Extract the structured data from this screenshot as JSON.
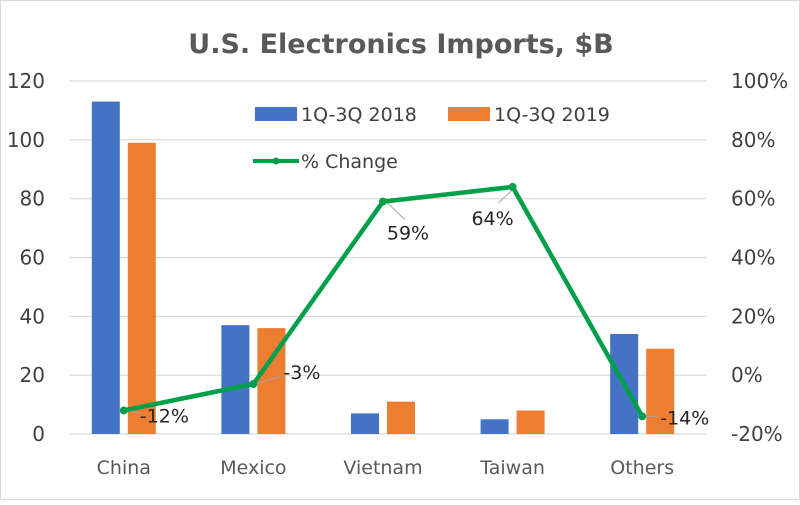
{
  "chart_data": {
    "type": "bar",
    "title": "U.S. Electronics Imports, $B",
    "categories": [
      "China",
      "Mexico",
      "Vietnam",
      "Taiwan",
      "Others"
    ],
    "series": [
      {
        "name": "1Q-3Q 2018",
        "type": "bar",
        "axis": "left",
        "color": "#4472C4",
        "values": [
          113,
          37,
          7,
          5,
          34
        ]
      },
      {
        "name": "1Q-3Q 2019",
        "type": "bar",
        "axis": "left",
        "color": "#ED7D31",
        "values": [
          99,
          36,
          11,
          8,
          29
        ]
      },
      {
        "name": "% Change",
        "type": "line",
        "axis": "right",
        "color": "#00A04A",
        "values": [
          -12,
          -3,
          59,
          64,
          -14
        ],
        "labels": [
          "-12%",
          "-3%",
          "59%",
          "64%",
          "-14%"
        ]
      }
    ],
    "left_axis": {
      "min": 0,
      "max": 120,
      "ticks": [
        0,
        20,
        40,
        60,
        80,
        100,
        120
      ],
      "tick_labels": [
        "0",
        "20",
        "40",
        "60",
        "80",
        "100",
        "120"
      ]
    },
    "right_axis": {
      "min": -20,
      "max": 100,
      "ticks": [
        -20,
        0,
        20,
        40,
        60,
        80,
        100
      ],
      "tick_labels": [
        "-20%",
        "0%",
        "20%",
        "40%",
        "60%",
        "80%",
        "100%"
      ]
    },
    "xlabel": "",
    "ylabel": "",
    "grid": true,
    "legend": {
      "placement": "top-center-inside",
      "entries": [
        "1Q-3Q 2018",
        "1Q-3Q 2019",
        "% Change"
      ]
    }
  }
}
